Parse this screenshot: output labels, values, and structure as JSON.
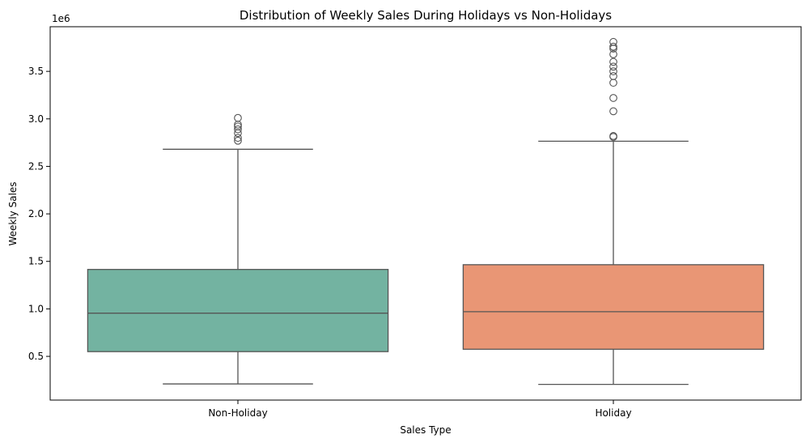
{
  "chart_data": {
    "type": "box",
    "title": "Distribution of Weekly Sales During Holidays vs Non-Holidays",
    "xlabel": "Sales Type",
    "ylabel": "Weekly Sales",
    "y_offset_label": "1e6",
    "y_scale_factor": 1000000,
    "ylim": [
      0.04,
      3.97
    ],
    "yticks": [
      0.5,
      1.0,
      1.5,
      2.0,
      2.5,
      3.0,
      3.5
    ],
    "ytick_labels": [
      "0.5",
      "1.0",
      "1.5",
      "2.0",
      "2.5",
      "3.0",
      "3.5"
    ],
    "grid": false,
    "legend": "none",
    "categories": [
      "Non-Holiday",
      "Holiday"
    ],
    "boxes": [
      {
        "category": "Non-Holiday",
        "color": "#73b3a1",
        "whisker_low": 0.21,
        "q1": 0.55,
        "median": 0.955,
        "q3": 1.415,
        "whisker_high": 2.68,
        "outliers": [
          2.77,
          2.8,
          2.85,
          2.89,
          2.92,
          2.94,
          3.01
        ]
      },
      {
        "category": "Holiday",
        "color": "#e99675",
        "whisker_low": 0.205,
        "q1": 0.575,
        "median": 0.97,
        "q3": 1.465,
        "whisker_high": 2.765,
        "outliers": [
          2.81,
          2.82,
          3.08,
          3.22,
          3.38,
          3.45,
          3.5,
          3.55,
          3.6,
          3.68,
          3.74,
          3.76,
          3.81
        ]
      }
    ],
    "line_color": "#555555"
  }
}
